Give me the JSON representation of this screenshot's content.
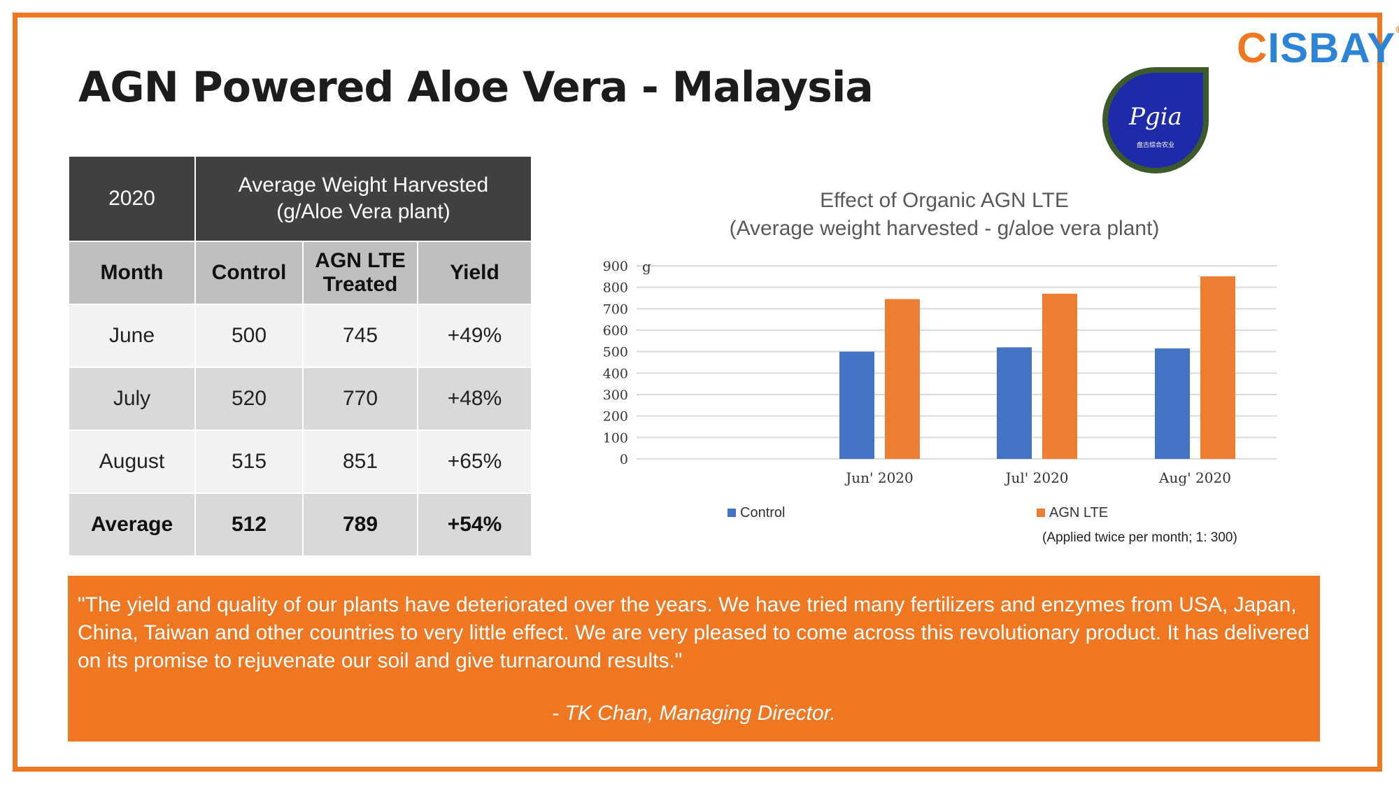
{
  "slide": {
    "title": "AGN Powered Aloe Vera - Malaysia",
    "brand": {
      "first": "C",
      "rest": "ISBAY",
      "reg": "®"
    },
    "logo_text": "Pgia",
    "logo_subtext": "盘古综合农业",
    "colors": {
      "accent": "#f07722",
      "control": "#4472c4",
      "agn": "#ed7d31",
      "header": "#404040"
    }
  },
  "table": {
    "year": "2020",
    "group_header": "Average Weight Harvested (g/Aloe Vera plant)",
    "columns": [
      "Month",
      "Control",
      "AGN LTE Treated",
      "Yield"
    ],
    "rows": [
      [
        "June",
        "500",
        "745",
        "+49%"
      ],
      [
        "July",
        "520",
        "770",
        "+48%"
      ],
      [
        "August",
        "515",
        "851",
        "+65%"
      ]
    ],
    "average": [
      "Average",
      "512",
      "789",
      "+54%"
    ]
  },
  "chart_data": {
    "type": "bar",
    "title": "Effect of Organic AGN LTE",
    "subtitle": "(Average weight harvested - g/aloe vera plant)",
    "ylabel": "g",
    "categories": [
      "Jun' 2020",
      "Jul' 2020",
      "Aug' 2020"
    ],
    "series": [
      {
        "name": "Control",
        "values": [
          500,
          520,
          515
        ],
        "color": "#4472c4"
      },
      {
        "name": "AGN LTE",
        "values": [
          745,
          770,
          851
        ],
        "color": "#ed7d31"
      }
    ],
    "ylim": [
      0,
      900
    ],
    "yticks": [
      0,
      100,
      200,
      300,
      400,
      500,
      600,
      700,
      800,
      900
    ],
    "grid": true,
    "legend": "bottom",
    "note": "(Applied twice per month; 1: 300)"
  },
  "quote": {
    "text": "\"The yield and quality of our plants have deteriorated over the years. We have tried many fertilizers and enzymes from USA, Japan, China, Taiwan and other countries to very little effect. We are very pleased to come across this revolutionary product. It has delivered on its promise to rejuvenate our soil and give turnaround results.\"",
    "author": "- TK Chan, Managing Director."
  }
}
